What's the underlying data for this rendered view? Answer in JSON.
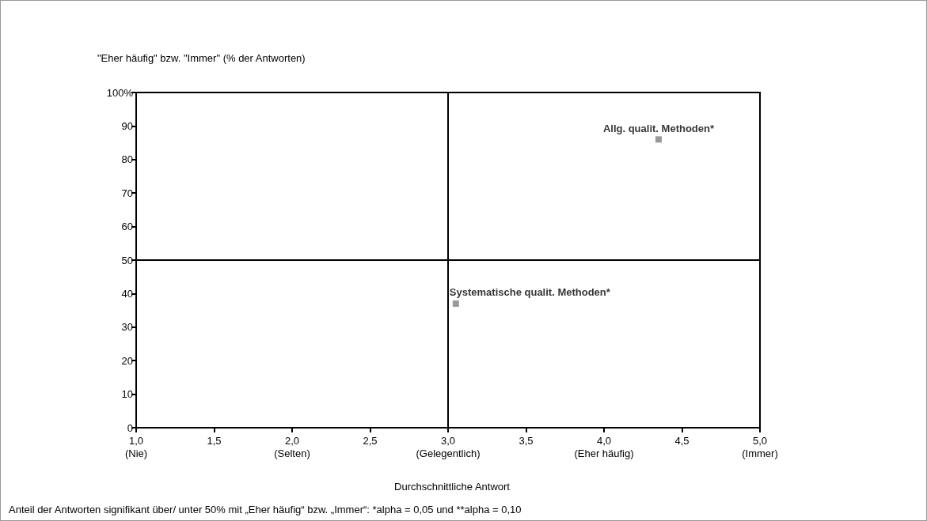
{
  "chart_data": {
    "type": "scatter",
    "ylabel": "\"Eher häufig\" bzw. \"Immer\" (% der Antworten)",
    "xlabel": "Durchschnittliche Antwort",
    "annotations": [
      "Anteil der Antworten signifikant über/ unter 50% mit „Eher häufig“ bzw. „Immer“: *alpha = 0,05 und **alpha = 0,10"
    ],
    "series": [
      {
        "name": "Allg. qualit. Methoden*",
        "color": "#808080",
        "x": [
          4.35
        ],
        "values": [
          86
        ]
      },
      {
        "name": "Systematische qualit. Methoden*",
        "color": "#808080",
        "x": [
          3.05
        ],
        "values": [
          37
        ]
      }
    ],
    "xlim": [
      1,
      5
    ],
    "xticks": [
      {
        "value": 1,
        "label": "1,0\n(Nie)"
      },
      {
        "value": 1.5,
        "label": "1,5"
      },
      {
        "value": 2,
        "label": "2,0\n(Selten)"
      },
      {
        "value": 2.5,
        "label": "2,5"
      },
      {
        "value": 3,
        "label": "3,0\n(Gelegentlich)"
      },
      {
        "value": 3.5,
        "label": "3,5"
      },
      {
        "value": 4,
        "label": "4,0\n(Eher häufig)"
      },
      {
        "value": 4.5,
        "label": "4,5"
      },
      {
        "value": 5,
        "label": "5,0\n(Immer)"
      }
    ],
    "ylim": [
      0,
      100
    ],
    "yticks": [
      0,
      10,
      20,
      30,
      40,
      50,
      60,
      70,
      80,
      90,
      {
        "value": 100,
        "label": "100%"
      }
    ],
    "ref_lines": [
      {
        "axis": "x",
        "value": 3,
        "label": null
      },
      {
        "axis": "y",
        "value": 50,
        "label": null
      }
    ],
    "grid": false,
    "legend": false,
    "marker": "square"
  }
}
